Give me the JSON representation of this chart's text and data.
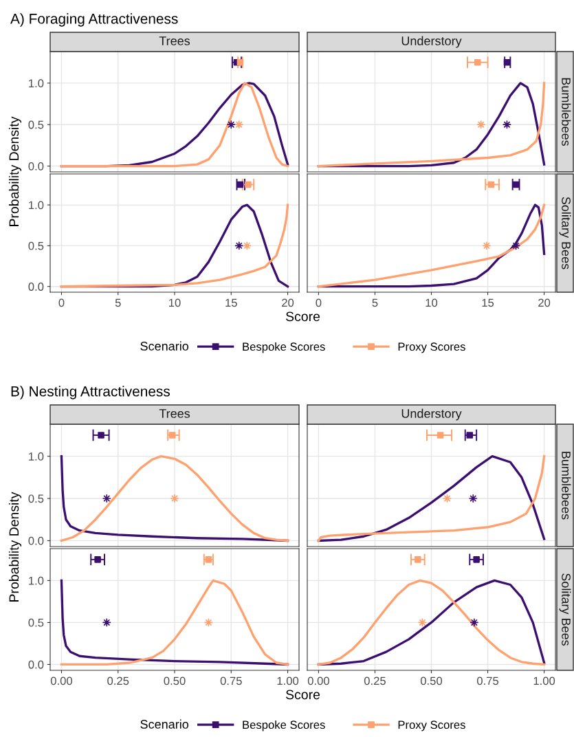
{
  "chart_data": [
    {
      "type": "line",
      "title": "A) Foraging Attractiveness",
      "subtitle": "Trees",
      "ylabel": "Probability Density",
      "xlim": [
        -1,
        21
      ],
      "xticks": [
        0,
        5,
        10,
        15,
        20
      ],
      "ylim": [
        -0.07,
        1.38
      ],
      "yticks": [
        {
          "value": 0,
          "label": "0.0"
        },
        {
          "value": 0.5,
          "label": "0.5"
        },
        {
          "value": 1,
          "label": "1.0"
        }
      ],
      "grid": true,
      "tick_labels": "y",
      "series": [
        {
          "color": "#3b0f70",
          "x": [
            0,
            4,
            6,
            8,
            10,
            11,
            12,
            13,
            14,
            15,
            16,
            16.6,
            17,
            18,
            18.8,
            19.5,
            20
          ],
          "values": [
            0,
            0,
            0.01,
            0.05,
            0.15,
            0.24,
            0.36,
            0.52,
            0.7,
            0.86,
            0.98,
            1.0,
            0.99,
            0.85,
            0.6,
            0.25,
            0.02
          ]
        },
        {
          "color": "#fea16e",
          "x": [
            0,
            10,
            12,
            13,
            14,
            15,
            15.7,
            16.2,
            16.8,
            17.5,
            18.3,
            19,
            19.5,
            20
          ],
          "values": [
            0,
            0,
            0.02,
            0.08,
            0.25,
            0.6,
            0.88,
            1.0,
            0.95,
            0.7,
            0.35,
            0.1,
            0.02,
            0
          ]
        },
        {
          "type": "scatter",
          "marker": "star",
          "color": "#3b0f70",
          "x": [
            15.0
          ],
          "values": [
            0.5
          ]
        },
        {
          "type": "scatter",
          "marker": "star",
          "color": "#fea16e",
          "x": [
            15.7
          ],
          "values": [
            0.5
          ]
        },
        {
          "type": "scatter",
          "marker": "square",
          "color": "#3b0f70",
          "x": [
            15.5
          ],
          "values": [
            1.25
          ],
          "xerrors": [
            [
              15.1,
              15.9
            ]
          ]
        },
        {
          "type": "scatter",
          "marker": "square",
          "color": "#fea16e",
          "x": [
            15.8
          ],
          "values": [
            1.25
          ],
          "xerrors": [
            [
              15.6,
              16.0
            ]
          ]
        }
      ]
    },
    {
      "type": "line",
      "subtitle": "Understory",
      "annotations": [
        "Bumblebees"
      ],
      "xlim": [
        -1,
        21
      ],
      "xticks": [
        0,
        5,
        10,
        15,
        20
      ],
      "ylim": [
        -0.07,
        1.38
      ],
      "yticks": [
        0,
        0.5,
        1
      ],
      "grid": true,
      "tick_labels": false,
      "series": [
        {
          "color": "#3b0f70",
          "x": [
            0,
            8,
            10,
            12,
            13,
            14,
            15,
            16,
            17,
            17.9,
            18.5,
            19,
            19.5,
            20
          ],
          "values": [
            0,
            0,
            0.01,
            0.04,
            0.1,
            0.2,
            0.38,
            0.6,
            0.85,
            1.0,
            0.95,
            0.75,
            0.4,
            0.02
          ]
        },
        {
          "color": "#fea16e",
          "x": [
            0,
            5,
            10,
            15,
            17,
            18.5,
            19.3,
            19.7,
            19.9,
            20
          ],
          "values": [
            0,
            0.03,
            0.06,
            0.1,
            0.13,
            0.2,
            0.3,
            0.5,
            0.75,
            1.0
          ]
        },
        {
          "type": "scatter",
          "marker": "star",
          "color": "#3b0f70",
          "x": [
            16.7
          ],
          "values": [
            0.5
          ]
        },
        {
          "type": "scatter",
          "marker": "star",
          "color": "#fea16e",
          "x": [
            14.4
          ],
          "values": [
            0.5
          ]
        },
        {
          "type": "scatter",
          "marker": "square",
          "color": "#3b0f70",
          "x": [
            16.7
          ],
          "values": [
            1.25
          ],
          "xerrors": [
            [
              16.5,
              17.0
            ]
          ]
        },
        {
          "type": "scatter",
          "marker": "square",
          "color": "#fea16e",
          "x": [
            14.1
          ],
          "values": [
            1.25
          ],
          "xerrors": [
            [
              13.2,
              15.0
            ]
          ]
        }
      ]
    },
    {
      "type": "line",
      "xlabel": "Score",
      "xlim": [
        -1,
        21
      ],
      "xticks": [
        0,
        5,
        10,
        15,
        20
      ],
      "ylim": [
        -0.07,
        1.38
      ],
      "yticks": [
        {
          "value": 0,
          "label": "0.0"
        },
        {
          "value": 0.5,
          "label": "0.5"
        },
        {
          "value": 1,
          "label": "1.0"
        }
      ],
      "grid": true,
      "series": [
        {
          "color": "#3b0f70",
          "x": [
            0,
            8,
            10,
            11,
            12,
            13,
            14,
            15,
            16,
            16.4,
            17,
            17.7,
            18.5,
            19.2,
            20
          ],
          "values": [
            0,
            0,
            0.02,
            0.05,
            0.12,
            0.3,
            0.55,
            0.82,
            0.98,
            1.0,
            0.92,
            0.65,
            0.3,
            0.07,
            0
          ]
        },
        {
          "color": "#fea16e",
          "x": [
            0,
            5,
            10,
            12,
            14,
            16,
            17,
            18,
            19,
            19.4,
            19.7,
            19.9,
            20
          ],
          "values": [
            0,
            0.01,
            0.02,
            0.04,
            0.08,
            0.15,
            0.19,
            0.24,
            0.38,
            0.55,
            0.7,
            0.85,
            1.0
          ]
        },
        {
          "type": "scatter",
          "marker": "star",
          "color": "#3b0f70",
          "x": [
            15.7
          ],
          "values": [
            0.5
          ]
        },
        {
          "type": "scatter",
          "marker": "star",
          "color": "#fea16e",
          "x": [
            16.4
          ],
          "values": [
            0.5
          ]
        },
        {
          "type": "scatter",
          "marker": "square",
          "color": "#3b0f70",
          "x": [
            15.8
          ],
          "values": [
            1.25
          ],
          "xerrors": [
            [
              15.5,
              16.2
            ]
          ]
        },
        {
          "type": "scatter",
          "marker": "square",
          "color": "#fea16e",
          "x": [
            16.5
          ],
          "values": [
            1.25
          ],
          "xerrors": [
            [
              16.0,
              17.0
            ]
          ]
        }
      ]
    },
    {
      "type": "line",
      "annotations": [
        "Solitary Bees"
      ],
      "legend": "bottom",
      "legend_title": "Scenario",
      "xlim": [
        -1,
        21
      ],
      "xticks": [
        0,
        5,
        10,
        15,
        20
      ],
      "ylim": [
        -0.07,
        1.38
      ],
      "yticks": [
        0,
        0.5,
        1
      ],
      "grid": true,
      "tick_labels": "x",
      "series": [
        {
          "name": "Bespoke Scores",
          "color": "#3b0f70",
          "x": [
            0,
            8,
            10,
            12,
            14,
            15,
            16,
            17,
            17.5,
            18,
            18.8,
            19.2,
            19.5,
            19.8,
            20
          ],
          "values": [
            0,
            0,
            0.01,
            0.03,
            0.1,
            0.2,
            0.35,
            0.45,
            0.53,
            0.65,
            0.9,
            1.0,
            0.97,
            0.75,
            0.4
          ]
        },
        {
          "name": "Proxy Scores",
          "color": "#fea16e",
          "x": [
            0,
            5,
            10,
            14,
            16,
            17.5,
            18.5,
            19.2,
            19.7,
            20
          ],
          "values": [
            0,
            0.08,
            0.2,
            0.31,
            0.37,
            0.48,
            0.58,
            0.7,
            0.85,
            1.0
          ]
        },
        {
          "type": "scatter",
          "marker": "star",
          "color": "#3b0f70",
          "x": [
            17.5
          ],
          "values": [
            0.5
          ]
        },
        {
          "type": "scatter",
          "marker": "star",
          "color": "#fea16e",
          "x": [
            14.9
          ],
          "values": [
            0.5
          ]
        },
        {
          "type": "scatter",
          "marker": "square",
          "color": "#3b0f70",
          "x": [
            17.5
          ],
          "values": [
            1.25
          ],
          "xerrors": [
            [
              17.2,
              17.8
            ]
          ]
        },
        {
          "type": "scatter",
          "marker": "square",
          "color": "#fea16e",
          "x": [
            15.3
          ],
          "values": [
            1.25
          ],
          "xerrors": [
            [
              14.8,
              16.0
            ]
          ]
        }
      ]
    },
    {
      "type": "line",
      "title": "B) Nesting Attractiveness",
      "subtitle": "Trees",
      "ylabel": "Probability Density",
      "xlim": [
        -0.05,
        1.05
      ],
      "xticks": [
        0,
        0.25,
        0.5,
        0.75,
        1
      ],
      "ylim": [
        -0.07,
        1.38
      ],
      "yticks": [
        {
          "value": 0,
          "label": "0.0"
        },
        {
          "value": 0.5,
          "label": "0.5"
        },
        {
          "value": 1,
          "label": "1.0"
        }
      ],
      "grid": true,
      "tick_labels": "y",
      "series": [
        {
          "color": "#3b0f70",
          "x": [
            0,
            0.005,
            0.01,
            0.02,
            0.04,
            0.08,
            0.15,
            0.25,
            0.4,
            0.6,
            0.8,
            1
          ],
          "values": [
            1.0,
            0.6,
            0.4,
            0.25,
            0.17,
            0.12,
            0.09,
            0.07,
            0.05,
            0.03,
            0.02,
            0
          ]
        },
        {
          "color": "#fea16e",
          "x": [
            0,
            0.05,
            0.1,
            0.15,
            0.2,
            0.25,
            0.3,
            0.35,
            0.4,
            0.44,
            0.5,
            0.55,
            0.6,
            0.65,
            0.7,
            0.75,
            0.8,
            0.85,
            0.9,
            0.95,
            1
          ],
          "values": [
            0,
            0.04,
            0.12,
            0.25,
            0.4,
            0.56,
            0.72,
            0.86,
            0.96,
            1.0,
            0.97,
            0.9,
            0.78,
            0.63,
            0.47,
            0.32,
            0.19,
            0.09,
            0.03,
            0.01,
            0
          ]
        },
        {
          "type": "scatter",
          "marker": "star",
          "color": "#3b0f70",
          "x": [
            0.2
          ],
          "values": [
            0.5
          ]
        },
        {
          "type": "scatter",
          "marker": "star",
          "color": "#fea16e",
          "x": [
            0.5
          ],
          "values": [
            0.5
          ]
        },
        {
          "type": "scatter",
          "marker": "square",
          "color": "#3b0f70",
          "x": [
            0.175
          ],
          "values": [
            1.25
          ],
          "xerrors": [
            [
              0.14,
              0.21
            ]
          ]
        },
        {
          "type": "scatter",
          "marker": "square",
          "color": "#fea16e",
          "x": [
            0.49
          ],
          "values": [
            1.25
          ],
          "xerrors": [
            [
              0.47,
              0.52
            ]
          ]
        }
      ]
    },
    {
      "type": "line",
      "subtitle": "Understory",
      "annotations": [
        "Bumblebees"
      ],
      "xlim": [
        -0.05,
        1.05
      ],
      "xticks": [
        0,
        0.25,
        0.5,
        0.75,
        1
      ],
      "ylim": [
        -0.07,
        1.38
      ],
      "yticks": [
        0,
        0.5,
        1
      ],
      "grid": true,
      "tick_labels": false,
      "series": [
        {
          "color": "#3b0f70",
          "x": [
            0,
            0.1,
            0.2,
            0.3,
            0.4,
            0.5,
            0.6,
            0.7,
            0.77,
            0.85,
            0.9,
            0.95,
            1
          ],
          "values": [
            0,
            0.01,
            0.05,
            0.13,
            0.27,
            0.45,
            0.65,
            0.87,
            1.0,
            0.93,
            0.75,
            0.43,
            0.02
          ]
        },
        {
          "color": "#fea16e",
          "x": [
            0,
            0.01,
            0.05,
            0.2,
            0.4,
            0.6,
            0.75,
            0.85,
            0.92,
            0.96,
            0.99,
            1
          ],
          "values": [
            0,
            0.04,
            0.06,
            0.08,
            0.1,
            0.12,
            0.16,
            0.22,
            0.32,
            0.5,
            0.8,
            1.0
          ]
        },
        {
          "type": "scatter",
          "marker": "star",
          "color": "#3b0f70",
          "x": [
            0.685
          ],
          "values": [
            0.5
          ]
        },
        {
          "type": "scatter",
          "marker": "star",
          "color": "#fea16e",
          "x": [
            0.57
          ],
          "values": [
            0.5
          ]
        },
        {
          "type": "scatter",
          "marker": "square",
          "color": "#3b0f70",
          "x": [
            0.67
          ],
          "values": [
            1.25
          ],
          "xerrors": [
            [
              0.65,
              0.7
            ]
          ]
        },
        {
          "type": "scatter",
          "marker": "square",
          "color": "#fea16e",
          "x": [
            0.54
          ],
          "values": [
            1.25
          ],
          "xerrors": [
            [
              0.48,
              0.59
            ]
          ]
        }
      ]
    },
    {
      "type": "line",
      "xlabel": "Score",
      "xlim": [
        -0.05,
        1.05
      ],
      "xticks": [
        {
          "value": 0,
          "label": "0.00"
        },
        {
          "value": 0.25,
          "label": "0.25"
        },
        {
          "value": 0.5,
          "label": "0.50"
        },
        {
          "value": 0.75,
          "label": "0.75"
        },
        {
          "value": 1,
          "label": "1.00"
        }
      ],
      "ylim": [
        -0.07,
        1.38
      ],
      "yticks": [
        {
          "value": 0,
          "label": "0.0"
        },
        {
          "value": 0.5,
          "label": "0.5"
        },
        {
          "value": 1,
          "label": "1.0"
        }
      ],
      "grid": true,
      "series": [
        {
          "color": "#3b0f70",
          "x": [
            0,
            0.005,
            0.01,
            0.02,
            0.04,
            0.08,
            0.15,
            0.3,
            0.5,
            0.7,
            0.9,
            1
          ],
          "values": [
            1.0,
            0.55,
            0.35,
            0.22,
            0.15,
            0.1,
            0.08,
            0.06,
            0.04,
            0.03,
            0.01,
            0
          ]
        },
        {
          "color": "#fea16e",
          "x": [
            0,
            0.2,
            0.3,
            0.4,
            0.45,
            0.5,
            0.55,
            0.6,
            0.65,
            0.67,
            0.72,
            0.75,
            0.8,
            0.85,
            0.9,
            0.95,
            1
          ],
          "values": [
            0,
            0,
            0.02,
            0.08,
            0.16,
            0.3,
            0.48,
            0.7,
            0.92,
            1.0,
            0.96,
            0.88,
            0.62,
            0.33,
            0.12,
            0.02,
            0
          ]
        },
        {
          "type": "scatter",
          "marker": "star",
          "color": "#3b0f70",
          "x": [
            0.2
          ],
          "values": [
            0.5
          ]
        },
        {
          "type": "scatter",
          "marker": "star",
          "color": "#fea16e",
          "x": [
            0.65
          ],
          "values": [
            0.5
          ]
        },
        {
          "type": "scatter",
          "marker": "square",
          "color": "#3b0f70",
          "x": [
            0.16
          ],
          "values": [
            1.25
          ],
          "xerrors": [
            [
              0.13,
              0.19
            ]
          ]
        },
        {
          "type": "scatter",
          "marker": "square",
          "color": "#fea16e",
          "x": [
            0.65
          ],
          "values": [
            1.25
          ],
          "xerrors": [
            [
              0.63,
              0.67
            ]
          ]
        }
      ]
    },
    {
      "type": "line",
      "annotations": [
        "Solitary Bees"
      ],
      "legend": "bottom",
      "legend_title": "Scenario",
      "xlim": [
        -0.05,
        1.05
      ],
      "xticks": [
        {
          "value": 0,
          "label": "0.00"
        },
        {
          "value": 0.25,
          "label": "0.25"
        },
        {
          "value": 0.5,
          "label": "0.50"
        },
        {
          "value": 0.75,
          "label": "0.75"
        },
        {
          "value": 1,
          "label": "1.00"
        }
      ],
      "ylim": [
        -0.07,
        1.38
      ],
      "yticks": [
        0,
        0.5,
        1
      ],
      "grid": true,
      "tick_labels": "x",
      "series": [
        {
          "name": "Bespoke Scores",
          "color": "#3b0f70",
          "x": [
            0,
            0.1,
            0.2,
            0.3,
            0.4,
            0.5,
            0.6,
            0.7,
            0.78,
            0.85,
            0.9,
            0.95,
            1
          ],
          "values": [
            0,
            0.01,
            0.04,
            0.15,
            0.3,
            0.5,
            0.74,
            0.92,
            1.0,
            0.95,
            0.8,
            0.5,
            0.02
          ]
        },
        {
          "name": "Proxy Scores",
          "color": "#fea16e",
          "x": [
            0,
            0.05,
            0.1,
            0.15,
            0.2,
            0.25,
            0.3,
            0.35,
            0.4,
            0.45,
            0.5,
            0.55,
            0.6,
            0.65,
            0.7,
            0.75,
            0.8,
            0.85,
            0.9,
            0.95,
            1
          ],
          "values": [
            0,
            0.02,
            0.08,
            0.18,
            0.32,
            0.5,
            0.67,
            0.83,
            0.95,
            1.0,
            0.97,
            0.88,
            0.74,
            0.59,
            0.43,
            0.29,
            0.17,
            0.08,
            0.03,
            0.01,
            0
          ]
        },
        {
          "type": "scatter",
          "marker": "star",
          "color": "#3b0f70",
          "x": [
            0.69
          ],
          "values": [
            0.5
          ]
        },
        {
          "type": "scatter",
          "marker": "star",
          "color": "#fea16e",
          "x": [
            0.46
          ],
          "values": [
            0.5
          ]
        },
        {
          "type": "scatter",
          "marker": "square",
          "color": "#3b0f70",
          "x": [
            0.7
          ],
          "values": [
            1.25
          ],
          "xerrors": [
            [
              0.67,
              0.73
            ]
          ]
        },
        {
          "type": "scatter",
          "marker": "square",
          "color": "#fea16e",
          "x": [
            0.44
          ],
          "values": [
            1.25
          ],
          "xerrors": [
            [
              0.41,
              0.47
            ]
          ]
        }
      ]
    }
  ]
}
